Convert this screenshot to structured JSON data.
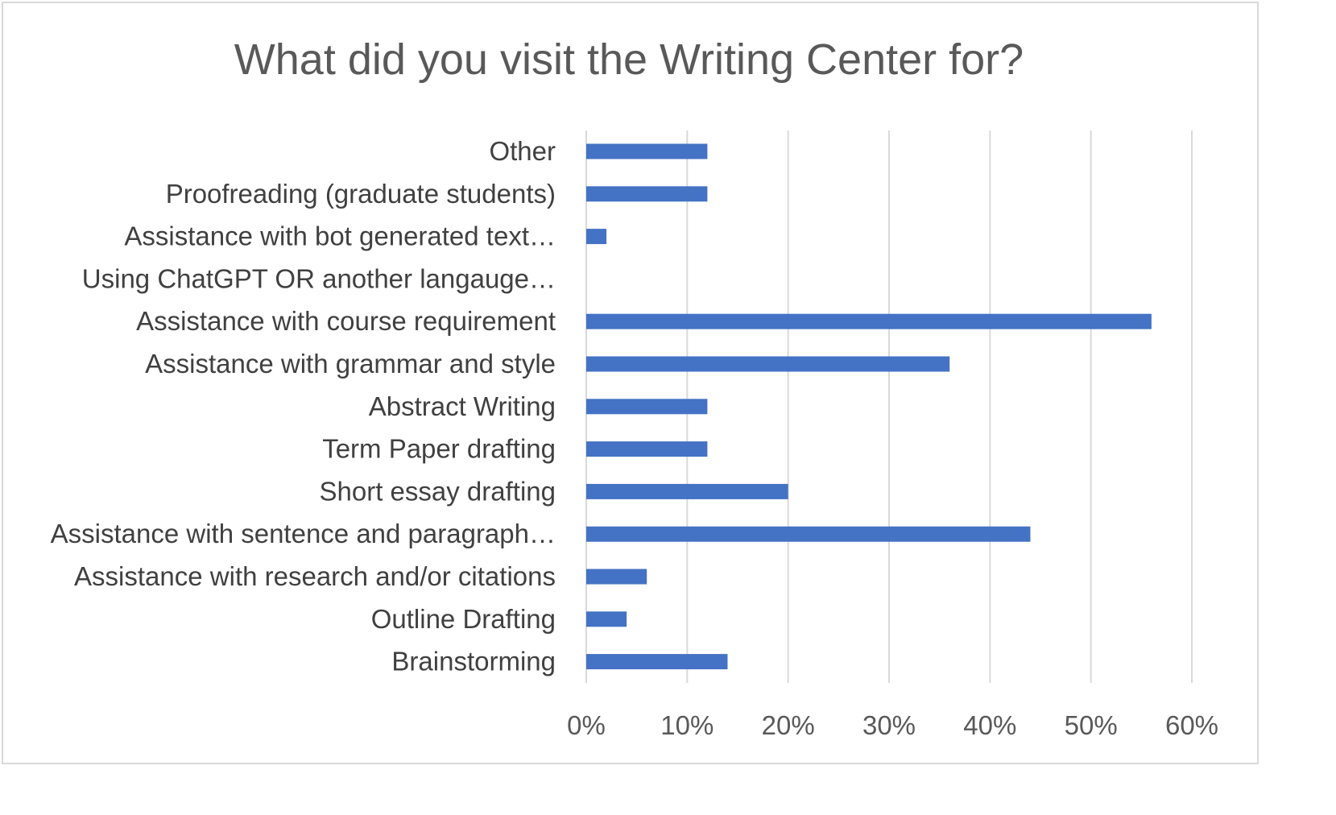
{
  "chart_data": {
    "type": "bar",
    "orientation": "horizontal",
    "title": "What did you visit the Writing Center for?",
    "categories": [
      "Other",
      "Proofreading (graduate students)",
      "Assistance with bot generated text…",
      "Using ChatGPT OR another langauge…",
      "Assistance with course requirement",
      "Assistance with grammar and style",
      "Abstract Writing",
      "Term Paper drafting",
      "Short essay drafting",
      "Assistance with sentence and paragraph…",
      "Assistance with research and/or citations",
      "Outline Drafting",
      "Brainstorming"
    ],
    "values": [
      12,
      12,
      2,
      0,
      56,
      36,
      12,
      12,
      20,
      44,
      6,
      4,
      14
    ],
    "xlim": [
      0,
      60
    ],
    "xticks": [
      "0%",
      "10%",
      "20%",
      "30%",
      "40%",
      "50%",
      "60%"
    ],
    "grid": true,
    "legend": "none",
    "bar_color": "#4472c4"
  }
}
